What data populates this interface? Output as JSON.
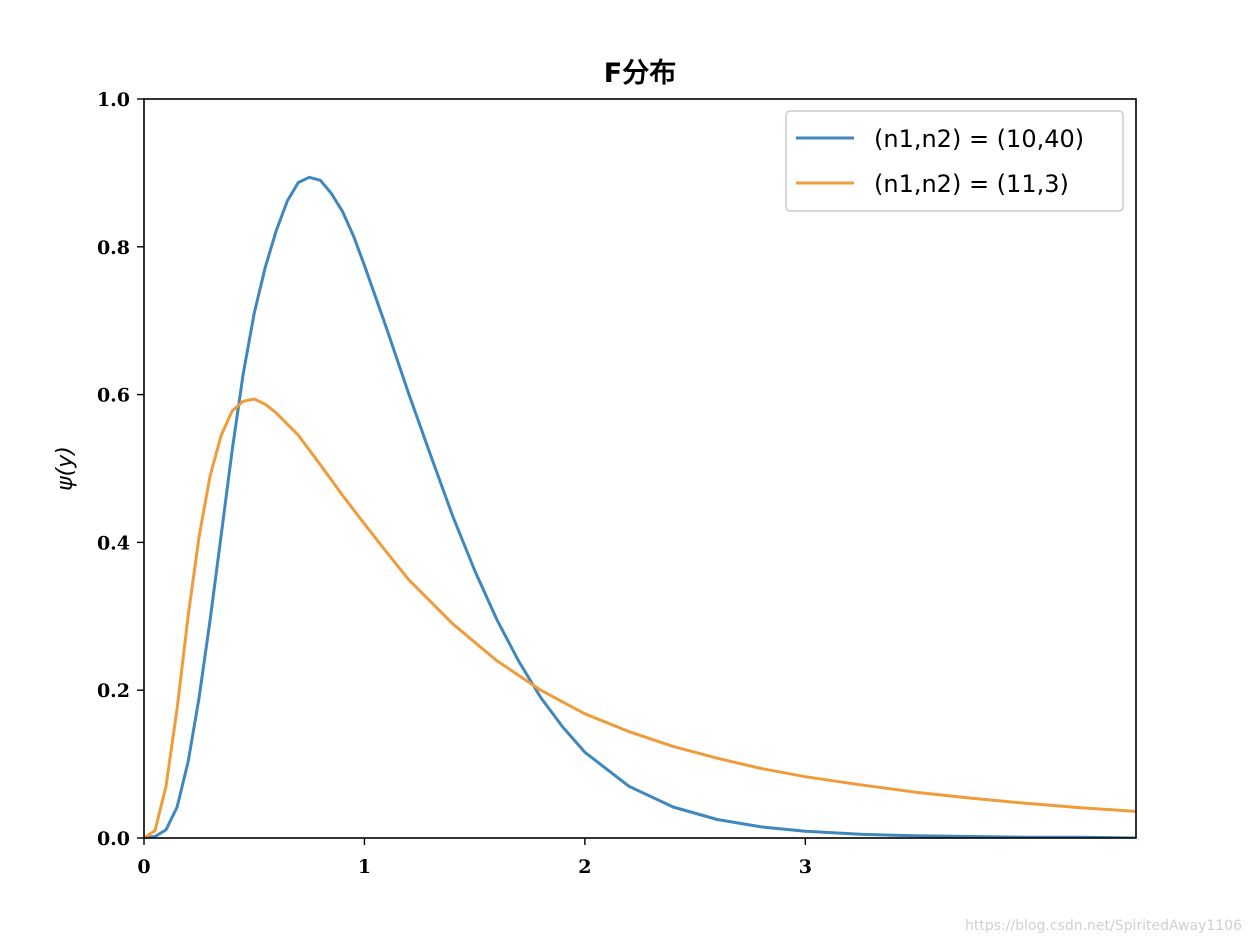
{
  "chart_data": {
    "type": "line",
    "title": "F分布",
    "xlabel": "",
    "ylabel": "ψ(y)",
    "xlim": [
      0,
      4.5
    ],
    "ylim": [
      0,
      1.0
    ],
    "x_ticks": [
      0,
      1,
      2,
      3
    ],
    "y_ticks": [
      0.0,
      0.2,
      0.4,
      0.6,
      0.8,
      1.0
    ],
    "x_tick_labels": [
      "0",
      "1",
      "2",
      "3"
    ],
    "y_tick_labels": [
      "0.0",
      "0.2",
      "0.4",
      "0.6",
      "0.8",
      "1.0"
    ],
    "grid": false,
    "legend_position": "top-right",
    "series": [
      {
        "name": "(n1,n2) = (10,40)",
        "color": "#3f87bc",
        "x": [
          0,
          0.05,
          0.1,
          0.15,
          0.2,
          0.25,
          0.3,
          0.35,
          0.4,
          0.45,
          0.5,
          0.55,
          0.6,
          0.65,
          0.7,
          0.75,
          0.8,
          0.85,
          0.9,
          0.95,
          1.0,
          1.1,
          1.2,
          1.3,
          1.4,
          1.5,
          1.6,
          1.7,
          1.8,
          1.9,
          2.0,
          2.2,
          2.4,
          2.6,
          2.8,
          3.0,
          3.25,
          3.5,
          3.75,
          4.0,
          4.25,
          4.5
        ],
        "y": [
          0,
          0.002,
          0.011,
          0.042,
          0.103,
          0.19,
          0.295,
          0.41,
          0.525,
          0.628,
          0.71,
          0.772,
          0.822,
          0.862,
          0.887,
          0.894,
          0.89,
          0.872,
          0.848,
          0.815,
          0.775,
          0.69,
          0.602,
          0.518,
          0.436,
          0.362,
          0.296,
          0.239,
          0.19,
          0.15,
          0.116,
          0.07,
          0.042,
          0.025,
          0.015,
          0.009,
          0.005,
          0.003,
          0.002,
          0.001,
          0.001,
          0.0
        ]
      },
      {
        "name": "(n1,n2) = (11,3)",
        "color": "#ef9c3b",
        "x": [
          0,
          0.05,
          0.1,
          0.15,
          0.2,
          0.25,
          0.3,
          0.35,
          0.4,
          0.45,
          0.5,
          0.55,
          0.6,
          0.7,
          0.8,
          0.9,
          1.0,
          1.1,
          1.2,
          1.4,
          1.6,
          1.8,
          2.0,
          2.2,
          2.4,
          2.6,
          2.8,
          3.0,
          3.25,
          3.5,
          3.75,
          4.0,
          4.25,
          4.5
        ],
        "y": [
          0,
          0.01,
          0.07,
          0.175,
          0.3,
          0.408,
          0.49,
          0.545,
          0.578,
          0.591,
          0.594,
          0.587,
          0.575,
          0.545,
          0.505,
          0.464,
          0.425,
          0.387,
          0.35,
          0.29,
          0.24,
          0.2,
          0.168,
          0.144,
          0.124,
          0.108,
          0.094,
          0.083,
          0.072,
          0.062,
          0.054,
          0.047,
          0.041,
          0.036
        ]
      }
    ]
  },
  "watermark": "https://blog.csdn.net/SpiritedAway1106"
}
